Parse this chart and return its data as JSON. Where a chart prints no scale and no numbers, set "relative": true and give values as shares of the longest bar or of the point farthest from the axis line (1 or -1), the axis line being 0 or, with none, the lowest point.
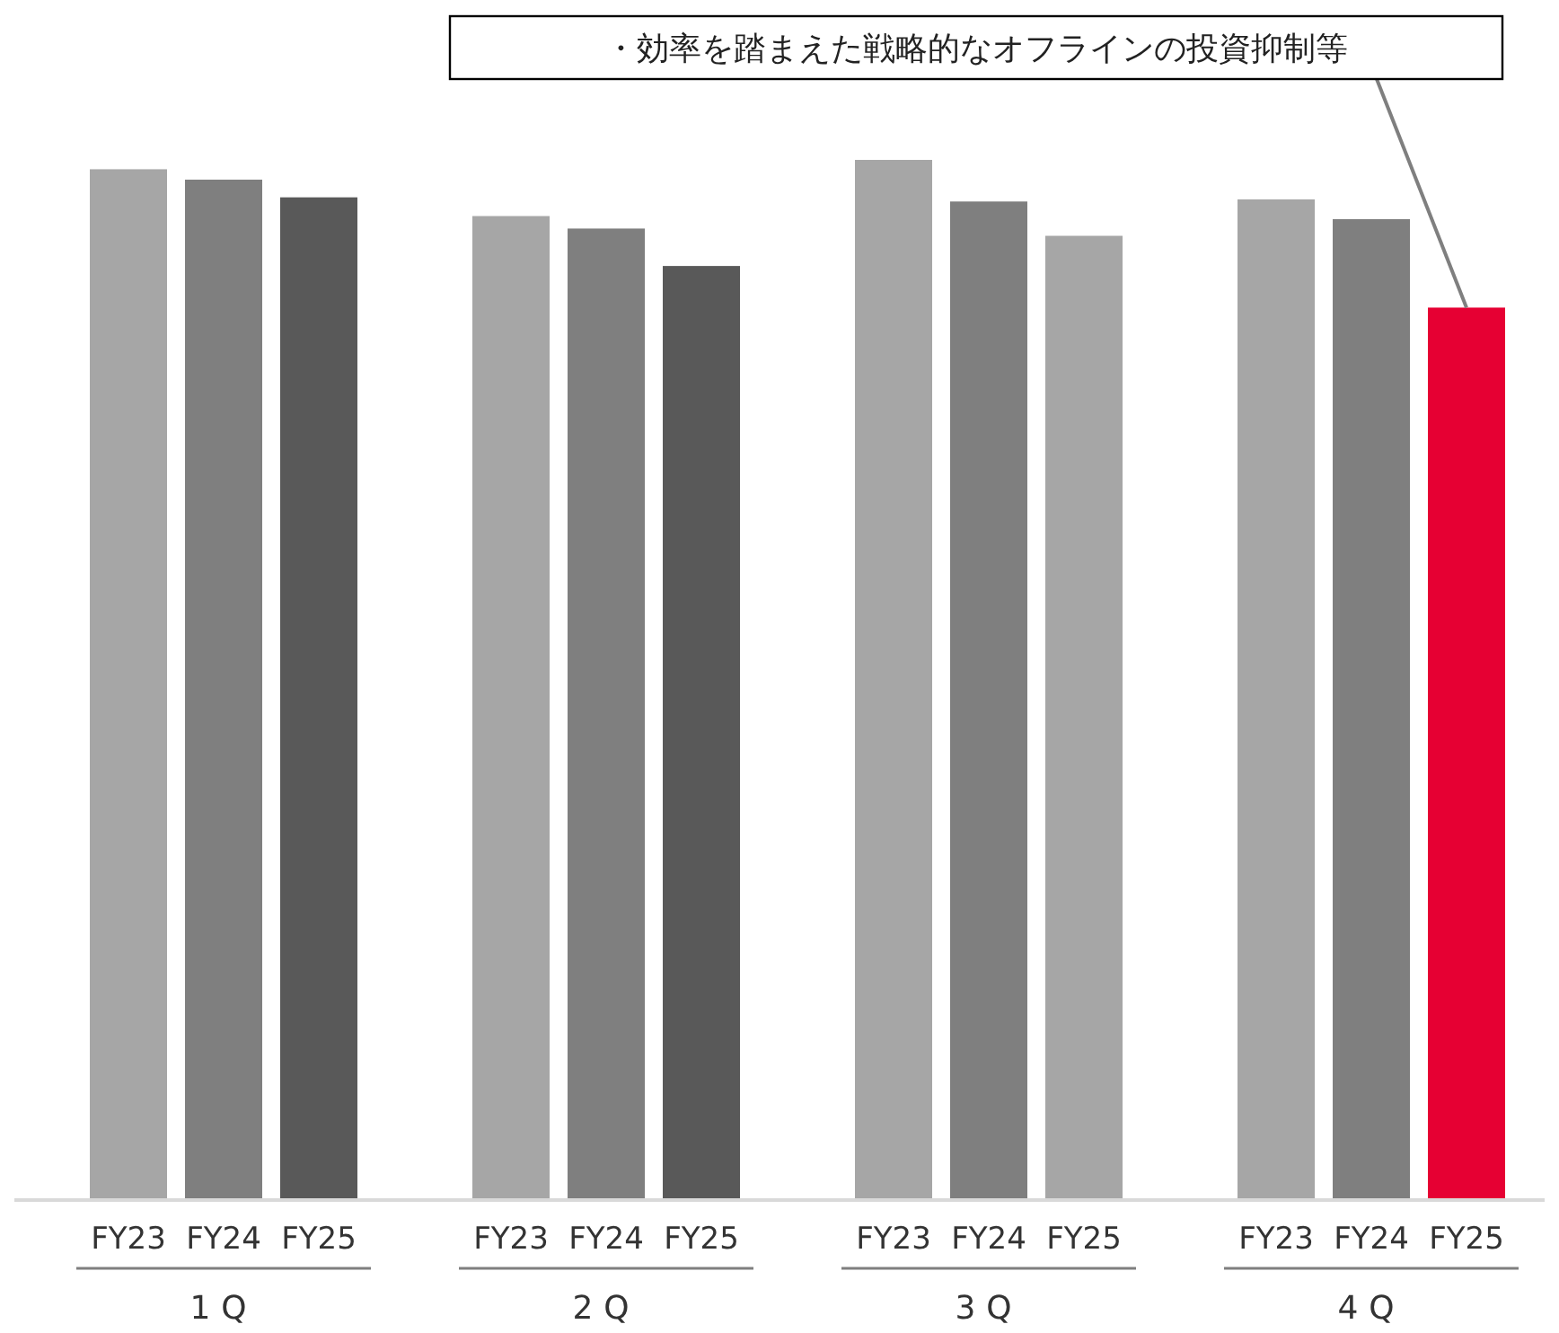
{
  "chart_data": {
    "type": "bar",
    "relative": true,
    "categories": [
      "1Q",
      "2Q",
      "3Q",
      "4Q"
    ],
    "series": [
      {
        "name": "FY23",
        "colors": [
          "#a6a6a6",
          "#a6a6a6",
          "#a6a6a6",
          "#a6a6a6"
        ],
        "values": [
          0.991,
          0.946,
          1,
          0.962
        ]
      },
      {
        "name": "FY24",
        "colors": [
          "#7f7f7f",
          "#7f7f7f",
          "#7f7f7f",
          "#7f7f7f"
        ],
        "values": [
          0.981,
          0.934,
          0.96,
          0.943
        ]
      },
      {
        "name": "FY25",
        "colors": [
          "#595959",
          "#595959",
          "#a6a6a6",
          "#e60033"
        ],
        "values": [
          0.964,
          0.898,
          0.927,
          0.858
        ]
      }
    ],
    "annotations": [
      "・効率を踏まえた戦略的なオフラインの投資抑制等"
    ]
  }
}
